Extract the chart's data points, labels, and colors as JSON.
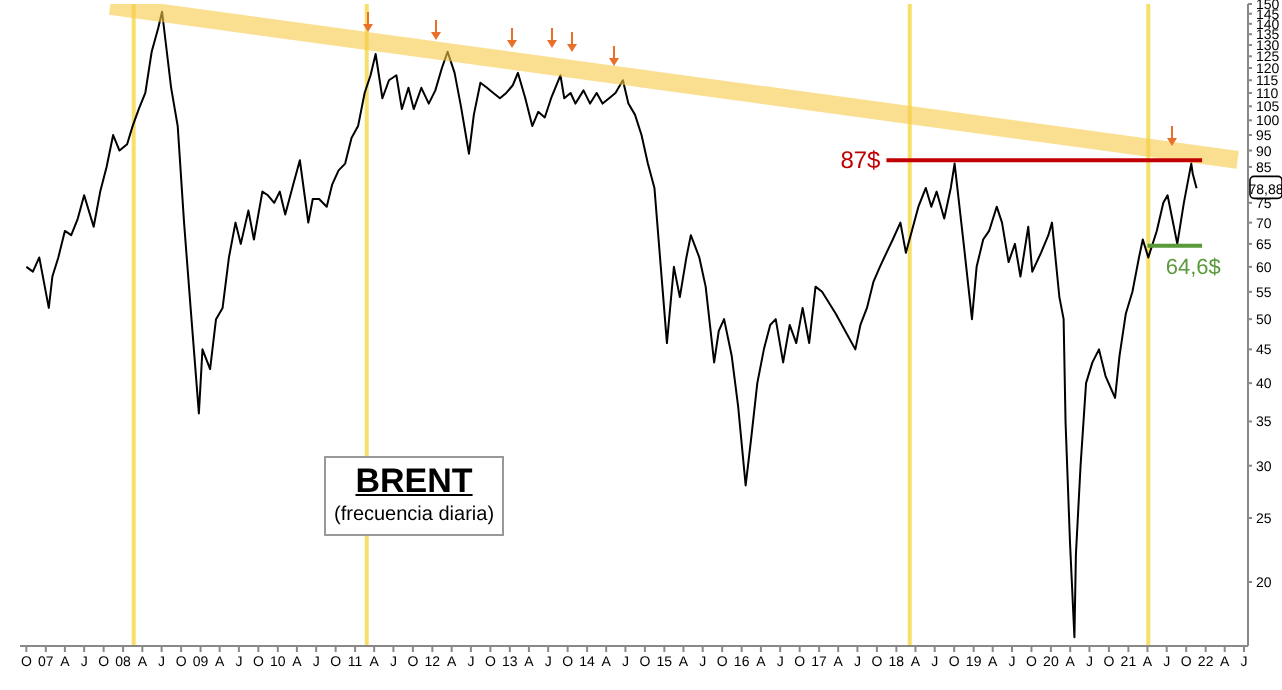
{
  "chart_data": {
    "type": "line",
    "title": "BRENT",
    "subtitle": "(frecuencia diaria)",
    "log": true,
    "marker": "none",
    "line_style": "solid",
    "xlim": [
      "2006-09-01",
      "2022-07-20"
    ],
    "xticks": [
      {
        "value": "2006-10",
        "label": "O"
      },
      {
        "value": "2007-01",
        "label": "07"
      },
      {
        "value": "2007-04",
        "label": "A"
      },
      {
        "value": "2007-07",
        "label": "J"
      },
      {
        "value": "2007-10",
        "label": "O"
      },
      {
        "value": "2008-01",
        "label": "08"
      },
      {
        "value": "2008-04",
        "label": "A"
      },
      {
        "value": "2008-07",
        "label": "J"
      },
      {
        "value": "2008-10",
        "label": "O"
      },
      {
        "value": "2009-01",
        "label": "09"
      },
      {
        "value": "2009-04",
        "label": "A"
      },
      {
        "value": "2009-07",
        "label": "J"
      },
      {
        "value": "2009-10",
        "label": "O"
      },
      {
        "value": "2010-01",
        "label": "10"
      },
      {
        "value": "2010-04",
        "label": "A"
      },
      {
        "value": "2010-07",
        "label": "J"
      },
      {
        "value": "2010-10",
        "label": "O"
      },
      {
        "value": "2011-01",
        "label": "11"
      },
      {
        "value": "2011-04",
        "label": "A"
      },
      {
        "value": "2011-07",
        "label": "J"
      },
      {
        "value": "2011-10",
        "label": "O"
      },
      {
        "value": "2012-01",
        "label": "12"
      },
      {
        "value": "2012-04",
        "label": "A"
      },
      {
        "value": "2012-07",
        "label": "J"
      },
      {
        "value": "2012-10",
        "label": "O"
      },
      {
        "value": "2013-01",
        "label": "13"
      },
      {
        "value": "2013-04",
        "label": "A"
      },
      {
        "value": "2013-07",
        "label": "J"
      },
      {
        "value": "2013-10",
        "label": "O"
      },
      {
        "value": "2014-01",
        "label": "14"
      },
      {
        "value": "2014-04",
        "label": "A"
      },
      {
        "value": "2014-07",
        "label": "J"
      },
      {
        "value": "2014-10",
        "label": "O"
      },
      {
        "value": "2015-01",
        "label": "15"
      },
      {
        "value": "2015-04",
        "label": "A"
      },
      {
        "value": "2015-07",
        "label": "J"
      },
      {
        "value": "2015-10",
        "label": "O"
      },
      {
        "value": "2016-01",
        "label": "16"
      },
      {
        "value": "2016-04",
        "label": "A"
      },
      {
        "value": "2016-07",
        "label": "J"
      },
      {
        "value": "2016-10",
        "label": "O"
      },
      {
        "value": "2017-01",
        "label": "17"
      },
      {
        "value": "2017-04",
        "label": "A"
      },
      {
        "value": "2017-07",
        "label": "J"
      },
      {
        "value": "2017-10",
        "label": "O"
      },
      {
        "value": "2018-01",
        "label": "18"
      },
      {
        "value": "2018-04",
        "label": "A"
      },
      {
        "value": "2018-07",
        "label": "J"
      },
      {
        "value": "2018-10",
        "label": "O"
      },
      {
        "value": "2019-01",
        "label": "19"
      },
      {
        "value": "2019-04",
        "label": "A"
      },
      {
        "value": "2019-07",
        "label": "J"
      },
      {
        "value": "2019-10",
        "label": "O"
      },
      {
        "value": "2020-01",
        "label": "20"
      },
      {
        "value": "2020-04",
        "label": "A"
      },
      {
        "value": "2020-07",
        "label": "J"
      },
      {
        "value": "2020-10",
        "label": "O"
      },
      {
        "value": "2021-01",
        "label": "21"
      },
      {
        "value": "2021-04",
        "label": "A"
      },
      {
        "value": "2021-07",
        "label": "J"
      },
      {
        "value": "2021-10",
        "label": "O"
      },
      {
        "value": "2022-01",
        "label": "22"
      },
      {
        "value": "2022-04",
        "label": "A"
      },
      {
        "value": "2022-07",
        "label": "J"
      }
    ],
    "ylim": [
      16,
      150
    ],
    "yticks": [
      20,
      25,
      30,
      35,
      40,
      45,
      50,
      55,
      60,
      65,
      70,
      75,
      85,
      90,
      95,
      100,
      105,
      110,
      115,
      120,
      125,
      130,
      135,
      140,
      145,
      150
    ],
    "series": [
      {
        "color": "#000000",
        "x": [
          "2006-10-01",
          "2006-11-01",
          "2006-12-01",
          "2007-01-15",
          "2007-02-01",
          "2007-03-01",
          "2007-04-01",
          "2007-05-01",
          "2007-06-01",
          "2007-07-01",
          "2007-08-15",
          "2007-09-15",
          "2007-10-15",
          "2007-11-15",
          "2007-12-15",
          "2008-01-20",
          "2008-02-15",
          "2008-03-15",
          "2008-04-15",
          "2008-05-15",
          "2008-06-15",
          "2008-07-03",
          "2008-08-15",
          "2008-09-15",
          "2008-10-15",
          "2008-11-15",
          "2008-12-24",
          "2009-01-10",
          "2009-02-15",
          "2009-03-15",
          "2009-04-15",
          "2009-05-15",
          "2009-06-15",
          "2009-07-10",
          "2009-08-15",
          "2009-09-10",
          "2009-10-20",
          "2009-11-15",
          "2009-12-15",
          "2010-01-10",
          "2010-02-05",
          "2010-03-15",
          "2010-04-15",
          "2010-05-25",
          "2010-06-15",
          "2010-07-15",
          "2010-08-20",
          "2010-09-15",
          "2010-10-15",
          "2010-11-15",
          "2010-12-15",
          "2011-01-15",
          "2011-02-15",
          "2011-03-15",
          "2011-04-08",
          "2011-05-10",
          "2011-06-10",
          "2011-07-15",
          "2011-08-10",
          "2011-09-10",
          "2011-10-05",
          "2011-11-10",
          "2011-12-15",
          "2012-01-15",
          "2012-02-15",
          "2012-03-13",
          "2012-04-15",
          "2012-05-15",
          "2012-06-22",
          "2012-07-15",
          "2012-08-15",
          "2012-09-15",
          "2012-10-15",
          "2012-11-15",
          "2012-12-15",
          "2013-01-15",
          "2013-02-08",
          "2013-03-15",
          "2013-04-17",
          "2013-05-15",
          "2013-06-15",
          "2013-07-15",
          "2013-08-28",
          "2013-09-15",
          "2013-10-15",
          "2013-11-07",
          "2013-12-15",
          "2014-01-15",
          "2014-02-15",
          "2014-03-15",
          "2014-04-15",
          "2014-05-15",
          "2014-06-19",
          "2014-07-15",
          "2014-08-15",
          "2014-09-15",
          "2014-10-15",
          "2014-11-15",
          "2014-12-15",
          "2015-01-13",
          "2015-02-15",
          "2015-03-15",
          "2015-04-15",
          "2015-05-06",
          "2015-06-15",
          "2015-07-15",
          "2015-08-24",
          "2015-09-15",
          "2015-10-10",
          "2015-11-15",
          "2015-12-15",
          "2016-01-20",
          "2016-02-15",
          "2016-03-15",
          "2016-04-15",
          "2016-05-15",
          "2016-06-10",
          "2016-07-15",
          "2016-08-15",
          "2016-09-15",
          "2016-10-15",
          "2016-11-15",
          "2016-12-15",
          "2017-01-15",
          "2017-03-20",
          "2017-06-21",
          "2017-07-15",
          "2017-08-15",
          "2017-09-15",
          "2017-10-15",
          "2017-11-15",
          "2017-12-15",
          "2018-01-20",
          "2018-02-15",
          "2018-03-15",
          "2018-04-15",
          "2018-05-20",
          "2018-06-15",
          "2018-07-10",
          "2018-08-15",
          "2018-09-15",
          "2018-10-03",
          "2018-11-15",
          "2018-12-24",
          "2019-01-15",
          "2019-02-15",
          "2019-03-15",
          "2019-04-20",
          "2019-05-15",
          "2019-06-15",
          "2019-07-15",
          "2019-08-10",
          "2019-09-16",
          "2019-10-05",
          "2019-11-15",
          "2019-12-20",
          "2020-01-06",
          "2020-02-10",
          "2020-03-01",
          "2020-03-10",
          "2020-03-31",
          "2020-04-21",
          "2020-04-28",
          "2020-05-20",
          "2020-06-15",
          "2020-07-15",
          "2020-08-15",
          "2020-09-15",
          "2020-10-30",
          "2020-11-20",
          "2020-12-20",
          "2021-01-20",
          "2021-02-20",
          "2021-03-10",
          "2021-04-05",
          "2021-05-15",
          "2021-06-15",
          "2021-07-05",
          "2021-08-20",
          "2021-09-20",
          "2021-10-25",
          "2021-11-01",
          "2021-11-19"
        ],
        "values": [
          60,
          59,
          62,
          52,
          58,
          62,
          68,
          67,
          71,
          77,
          69,
          78,
          85,
          95,
          90,
          92,
          98,
          104,
          110,
          127,
          138,
          146,
          112,
          98,
          70,
          52,
          36,
          45,
          42,
          50,
          52,
          62,
          70,
          65,
          73,
          66,
          78,
          77,
          75,
          78,
          72,
          80,
          87,
          70,
          76,
          76,
          74,
          80,
          84,
          86,
          94,
          98,
          110,
          117,
          126,
          108,
          115,
          117,
          104,
          112,
          104,
          112,
          106,
          111,
          120,
          127,
          118,
          105,
          89,
          102,
          114,
          112,
          110,
          108,
          110,
          113,
          118,
          108,
          98,
          103,
          101,
          108,
          117,
          108,
          110,
          106,
          111,
          106,
          110,
          106,
          108,
          110,
          115,
          106,
          102,
          95,
          86,
          79,
          60,
          46,
          60,
          54,
          62,
          67,
          62,
          56,
          43,
          48,
          50,
          44,
          37,
          28,
          33,
          40,
          45,
          49,
          50,
          43,
          49,
          46,
          52,
          46,
          56,
          55,
          51,
          45,
          49,
          52,
          57,
          60,
          63,
          66,
          70,
          63,
          68,
          74,
          79,
          74,
          78,
          71,
          79,
          86,
          65,
          50,
          60,
          66,
          68,
          74,
          70,
          61,
          65,
          58,
          69,
          59,
          63,
          67,
          70,
          54,
          50,
          35,
          23,
          16.5,
          22,
          30,
          40,
          43,
          45,
          41,
          38,
          44,
          51,
          55,
          62,
          66,
          62,
          68,
          75,
          77,
          65,
          75,
          86,
          83,
          78.88
        ]
      },
      {
        "color": "#f7c948",
        "x": [
          "2007-11-01",
          "2022-06-01"
        ],
        "values": [
          149,
          87.1
        ]
      },
      {
        "color": "#c00000",
        "x": [
          "2017-11-15",
          "2021-12-15"
        ],
        "values": [
          87,
          87
        ]
      },
      {
        "color": "#5a9a3a",
        "x": [
          "2021-04-01",
          "2021-12-15"
        ],
        "values": [
          64.6,
          64.6
        ]
      }
    ],
    "ref_lines": [
      {
        "axis": "x",
        "value": "2008-02-20",
        "color": "#f7e06a"
      },
      {
        "axis": "x",
        "value": "2011-02-25",
        "color": "#f7e06a"
      },
      {
        "axis": "x",
        "value": "2018-03-05",
        "color": "#f7e06a"
      },
      {
        "axis": "x",
        "value": "2021-04-05",
        "color": "#f7e06a"
      }
    ],
    "annotations": [
      {
        "text": "87$",
        "x": "2017-11-15",
        "y": 87
      },
      {
        "text": "64,6$",
        "x": "2021-08-20",
        "y": 64.6
      },
      "78,88"
    ]
  }
}
